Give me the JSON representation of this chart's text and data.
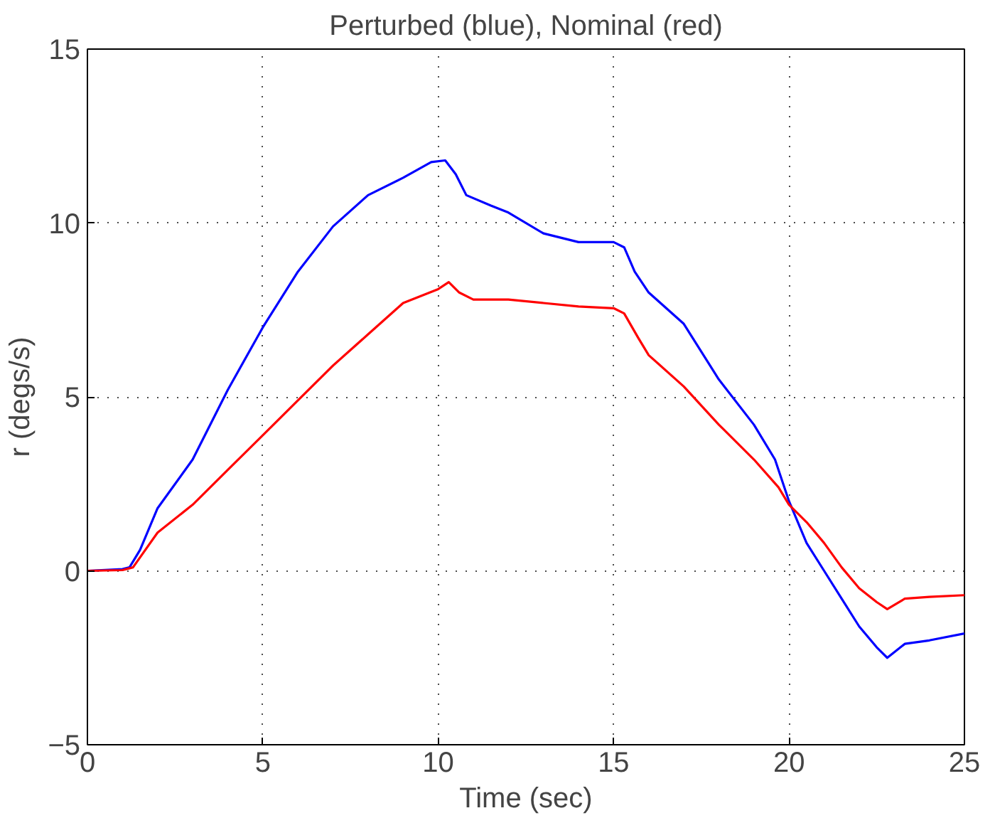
{
  "chart_data": {
    "type": "line",
    "title": "Perturbed (blue), Nominal (red)",
    "xlabel": "Time (sec)",
    "ylabel": "r (degs/s)",
    "xlim": [
      0,
      25
    ],
    "ylim": [
      -5,
      15
    ],
    "xticks": [
      0,
      5,
      10,
      15,
      20,
      25
    ],
    "yticks": [
      {
        "value": -5,
        "label": "−5"
      },
      0,
      5,
      10,
      15
    ],
    "grid": true,
    "line_style": "solid",
    "series": [
      {
        "color": "#0000ff",
        "x": [
          0,
          1,
          1.2,
          1.5,
          2,
          3,
          4,
          5,
          6,
          7,
          8,
          9,
          9.8,
          10.2,
          10.5,
          10.8,
          11.5,
          12,
          13,
          14,
          15,
          15.3,
          15.6,
          16,
          17,
          18,
          19,
          19.6,
          20,
          20.5,
          21,
          21.5,
          22,
          22.5,
          22.8,
          23.3,
          24,
          25
        ],
        "values": [
          0,
          0.05,
          0.1,
          0.6,
          1.8,
          3.2,
          5.2,
          7.0,
          8.6,
          9.9,
          10.8,
          11.3,
          11.75,
          11.8,
          11.4,
          10.8,
          10.5,
          10.3,
          9.7,
          9.45,
          9.45,
          9.3,
          8.6,
          8.0,
          7.1,
          5.5,
          4.2,
          3.2,
          2.0,
          0.8,
          0,
          -0.8,
          -1.6,
          -2.2,
          -2.5,
          -2.1,
          -2.0,
          -1.8
        ]
      },
      {
        "color": "#ff0000",
        "x": [
          0,
          1,
          1.3,
          2,
          3,
          4,
          5,
          6,
          7,
          8,
          9,
          10,
          10.3,
          10.6,
          11,
          12,
          13,
          14,
          15,
          15.3,
          15.7,
          16,
          17,
          18,
          19,
          19.7,
          20,
          20.5,
          21,
          21.5,
          22,
          22.5,
          22.8,
          23.3,
          24,
          25
        ],
        "values": [
          0,
          0.02,
          0.1,
          1.1,
          1.9,
          2.9,
          3.9,
          4.9,
          5.9,
          6.8,
          7.7,
          8.1,
          8.3,
          8.0,
          7.8,
          7.8,
          7.7,
          7.6,
          7.55,
          7.4,
          6.7,
          6.2,
          5.3,
          4.2,
          3.2,
          2.4,
          1.9,
          1.4,
          0.8,
          0.1,
          -0.5,
          -0.9,
          -1.1,
          -0.8,
          -0.75,
          -0.7
        ]
      }
    ]
  }
}
